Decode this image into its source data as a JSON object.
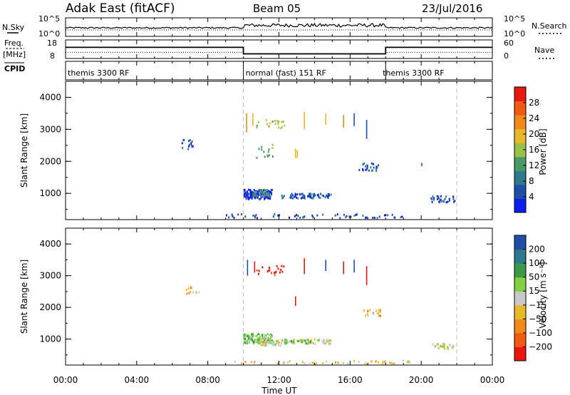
{
  "header": {
    "station": "Adak East (fitACF)",
    "beam": "Beam 05",
    "date": "23/Jul/2016"
  },
  "params": {
    "nsky_label": "N.Sky",
    "nsky_ticks": [
      "10^5",
      "10^0"
    ],
    "nsearch_label": "N.Search",
    "nsearch_ticks": [
      "10^5",
      "10^0"
    ],
    "freq_label": "Freq.",
    "freq_unit": "[MHz]",
    "freq_ticks": [
      "18",
      "8"
    ],
    "nave_label": "Nave",
    "nave_ticks": [
      "60",
      "0"
    ],
    "cpid_label": "CPID",
    "modes": [
      {
        "label": "themis 3300 RF",
        "start": 0,
        "end": 10
      },
      {
        "label": "normal (fast) 151 RF",
        "start": 10,
        "end": 18
      },
      {
        "label": "themis 3300 RF",
        "start": 18,
        "end": 22
      }
    ]
  },
  "chart_data": [
    {
      "type": "heatmap",
      "title": "Power",
      "xlabel": "",
      "ylabel": "Slant Range [km]",
      "xlim": [
        0,
        24
      ],
      "ylim": [
        180,
        4500
      ],
      "yticks": [
        "1000",
        "2000",
        "3000",
        "4000"
      ],
      "colorbar_label": "Power [dB]",
      "colorbar_ticks": [
        "28",
        "24",
        "20",
        "16",
        "12",
        "8",
        "4"
      ],
      "colors": [
        "#0a1ef0",
        "#1f4fa8",
        "#2e7a8a",
        "#4a9a68",
        "#9cc14a",
        "#e8b82a",
        "#f08a1a",
        "#f05a10",
        "#e81810"
      ],
      "clusters": [
        {
          "t": 6.9,
          "r": 2550,
          "dt": 0.8,
          "dr": 300,
          "c": 1,
          "n": 14
        },
        {
          "t": 10.8,
          "r": 1000,
          "dt": 1.6,
          "dr": 300,
          "c": 0,
          "n": 130
        },
        {
          "t": 11.0,
          "r": 1050,
          "dt": 1.0,
          "dr": 200,
          "c": 3,
          "n": 30
        },
        {
          "t": 13.5,
          "r": 950,
          "dt": 2.8,
          "dr": 150,
          "c": 1,
          "n": 70
        },
        {
          "t": 17.0,
          "r": 1850,
          "dt": 1.2,
          "dr": 250,
          "c": 1,
          "n": 25
        },
        {
          "t": 21.2,
          "r": 850,
          "dt": 1.4,
          "dr": 200,
          "c": 1,
          "n": 30
        },
        {
          "t": 14.0,
          "r": 320,
          "dt": 10.0,
          "dr": 120,
          "c": 1,
          "n": 60
        },
        {
          "t": 11.5,
          "r": 3200,
          "dt": 1.6,
          "dr": 300,
          "c": 4,
          "n": 22
        },
        {
          "t": 11.2,
          "r": 2300,
          "dt": 1.0,
          "dr": 500,
          "c": 3,
          "n": 14
        }
      ],
      "streaks": [
        {
          "t": 10.15,
          "r0": 2900,
          "r1": 3500,
          "c": 6
        },
        {
          "t": 10.5,
          "r0": 3100,
          "r1": 3500,
          "c": 5
        },
        {
          "t": 13.4,
          "r0": 3000,
          "r1": 3550,
          "c": 5
        },
        {
          "t": 14.6,
          "r0": 3150,
          "r1": 3500,
          "c": 5
        },
        {
          "t": 15.6,
          "r0": 3050,
          "r1": 3450,
          "c": 6
        },
        {
          "t": 16.2,
          "r0": 3100,
          "r1": 3500,
          "c": 1
        },
        {
          "t": 16.9,
          "r0": 2700,
          "r1": 3300,
          "c": 1
        },
        {
          "t": 12.9,
          "r0": 2100,
          "r1": 2400,
          "c": 5
        },
        {
          "t": 13.0,
          "r0": 2100,
          "r1": 2350,
          "c": 5
        },
        {
          "t": 20.0,
          "r0": 1850,
          "r1": 1950,
          "c": 1
        }
      ]
    },
    {
      "type": "heatmap",
      "title": "Velocity",
      "xlabel": "Time UT",
      "ylabel": "Slant Range [km]",
      "xlim": [
        0,
        24
      ],
      "ylim": [
        180,
        4500
      ],
      "xticks": [
        "00:00",
        "04:00",
        "08:00",
        "12:00",
        "16:00",
        "20:00",
        "00:00"
      ],
      "yticks": [
        "1000",
        "2000",
        "3000",
        "4000"
      ],
      "colorbar_label": "Velocity [m s⁻¹]",
      "colorbar_ticks": [
        "200",
        "100",
        "50",
        "15",
        "−15",
        "−50",
        "−100",
        "−200"
      ],
      "colors": [
        "#e81810",
        "#f05a10",
        "#f08a1a",
        "#e8b82a",
        "#c8c8c8",
        "#80d040",
        "#3a9a4a",
        "#2e7a8a",
        "#1f4fa8"
      ],
      "clusters": [
        {
          "t": 7.1,
          "r": 2550,
          "dt": 0.8,
          "dr": 250,
          "c": 3,
          "n": 12
        },
        {
          "t": 10.8,
          "r": 1050,
          "dt": 1.6,
          "dr": 300,
          "c": 5,
          "n": 130
        },
        {
          "t": 11.5,
          "r": 900,
          "dt": 1.2,
          "dr": 150,
          "c": 4,
          "n": 40
        },
        {
          "t": 13.5,
          "r": 950,
          "dt": 2.8,
          "dr": 150,
          "c": 4,
          "n": 60
        },
        {
          "t": 13.0,
          "r": 950,
          "dt": 1.6,
          "dr": 120,
          "c": 5,
          "n": 30
        },
        {
          "t": 17.2,
          "r": 1850,
          "dt": 1.0,
          "dr": 200,
          "c": 3,
          "n": 18
        },
        {
          "t": 21.2,
          "r": 800,
          "dt": 1.2,
          "dr": 180,
          "c": 4,
          "n": 28
        },
        {
          "t": 14.0,
          "r": 300,
          "dt": 11.0,
          "dr": 100,
          "c": 3,
          "n": 50
        },
        {
          "t": 11.5,
          "r": 3200,
          "dt": 1.6,
          "dr": 300,
          "c": 0,
          "n": 20
        }
      ],
      "streaks": [
        {
          "t": 10.2,
          "r0": 3000,
          "r1": 3500,
          "c": 8
        },
        {
          "t": 10.6,
          "r0": 3100,
          "r1": 3450,
          "c": 0
        },
        {
          "t": 13.4,
          "r0": 3050,
          "r1": 3550,
          "c": 0
        },
        {
          "t": 14.6,
          "r0": 3150,
          "r1": 3500,
          "c": 8
        },
        {
          "t": 15.6,
          "r0": 3050,
          "r1": 3450,
          "c": 0
        },
        {
          "t": 16.2,
          "r0": 3100,
          "r1": 3500,
          "c": 8
        },
        {
          "t": 16.9,
          "r0": 2700,
          "r1": 3300,
          "c": 0
        },
        {
          "t": 12.9,
          "r0": 2050,
          "r1": 2350,
          "c": 0
        }
      ]
    }
  ]
}
